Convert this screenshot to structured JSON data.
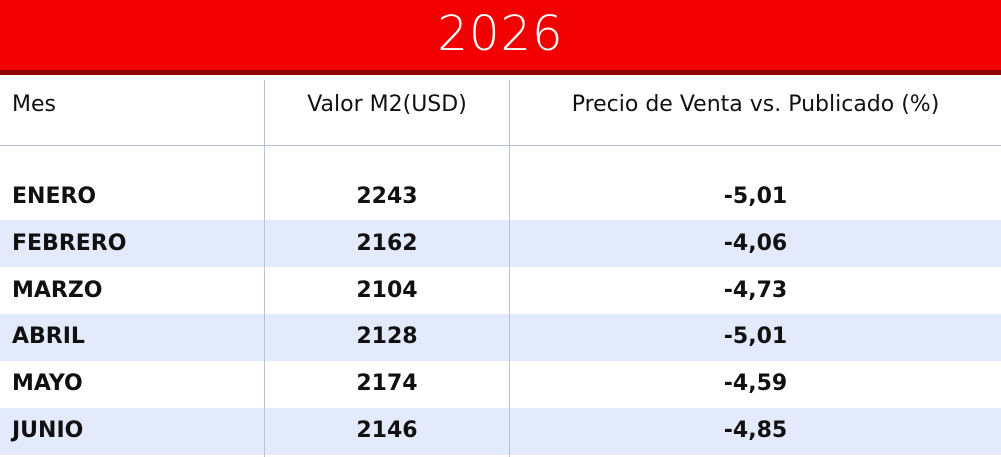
{
  "header": {
    "title": "2026"
  },
  "table": {
    "columns": [
      "Mes",
      "Valor M2(USD)",
      "Precio de Venta vs. Publicado (%)"
    ],
    "rows": [
      [
        "ENERO",
        "2243",
        "-5,01"
      ],
      [
        "FEBRERO",
        "2162",
        "-4,06"
      ],
      [
        "MARZO",
        "2104",
        "-4,73"
      ],
      [
        "ABRIL",
        "2128",
        "-5,01"
      ],
      [
        "MAYO",
        "2174",
        "-4,59"
      ],
      [
        "JUNIO",
        "2146",
        "-4,85"
      ]
    ]
  }
}
